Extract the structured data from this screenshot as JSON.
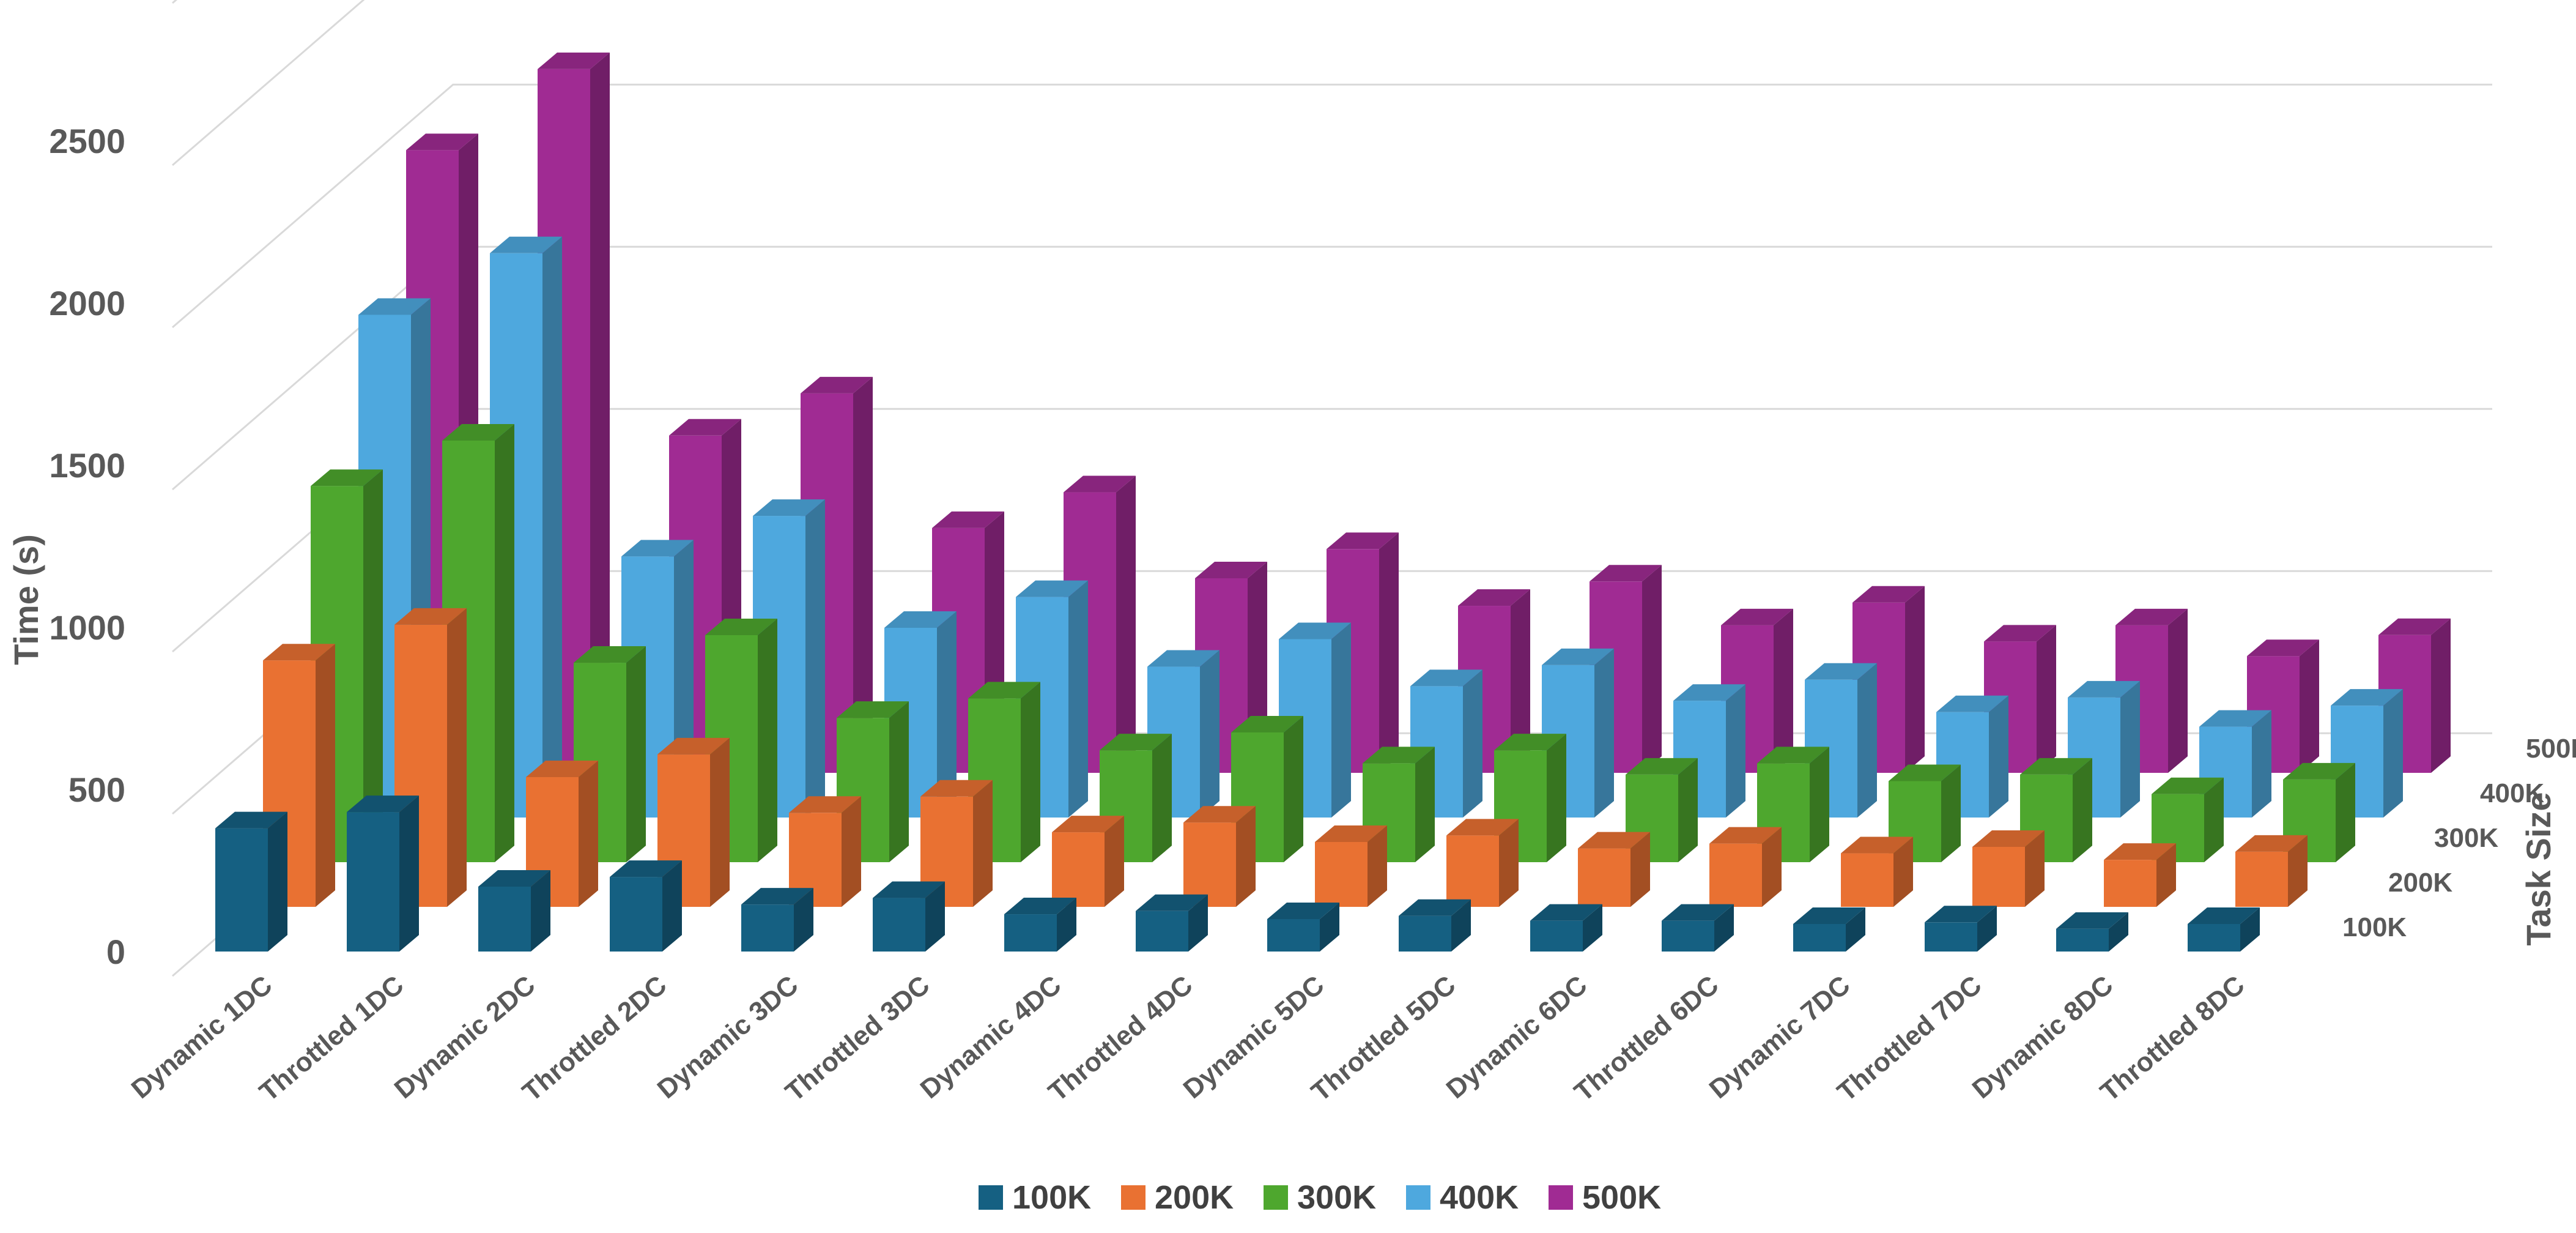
{
  "chart_data": {
    "type": "bar",
    "subtype": "3d-column",
    "title": "",
    "xlabel": "",
    "ylabel": "Time (s)",
    "zlabel": "Task Size",
    "ylim": [
      0,
      3000
    ],
    "yticks": [
      0,
      500,
      1000,
      1500,
      2000,
      2500
    ],
    "categories": [
      "Dynamic 1DC",
      "Throttled 1DC",
      "Dynamic 2DC",
      "Throttled 2DC",
      "Dynamic 3DC",
      "Throttled 3DC",
      "Dynamic 4DC",
      "Throttled 4DC",
      "Dynamic 5DC",
      "Throttled 5DC",
      "Dynamic 6DC",
      "Throttled 6DC",
      "Dynamic 7DC",
      "Throttled 7DC",
      "Dynamic 8DC",
      "Throttled 8DC"
    ],
    "series": [
      {
        "name": "100K",
        "color": "#156082",
        "values": [
          380,
          430,
          200,
          230,
          145,
          165,
          115,
          125,
          100,
          110,
          95,
          95,
          85,
          90,
          70,
          85
        ]
      },
      {
        "name": "200K",
        "color": "#E97132",
        "values": [
          760,
          870,
          400,
          470,
          290,
          340,
          230,
          260,
          200,
          220,
          180,
          195,
          165,
          185,
          145,
          170
        ]
      },
      {
        "name": "300K",
        "color": "#4EA72E",
        "values": [
          1160,
          1300,
          615,
          700,
          445,
          505,
          345,
          400,
          305,
          345,
          270,
          305,
          250,
          270,
          210,
          255
        ]
      },
      {
        "name": "400K",
        "color": "#4EA8DE",
        "values": [
          1550,
          1740,
          805,
          930,
          585,
          680,
          465,
          550,
          405,
          470,
          360,
          425,
          325,
          370,
          280,
          345
        ]
      },
      {
        "name": "500K",
        "color": "#A02B93",
        "values": [
          1920,
          2170,
          1040,
          1170,
          755,
          865,
          600,
          690,
          515,
          590,
          455,
          525,
          405,
          455,
          360,
          425
        ]
      }
    ],
    "legend_position": "bottom"
  }
}
